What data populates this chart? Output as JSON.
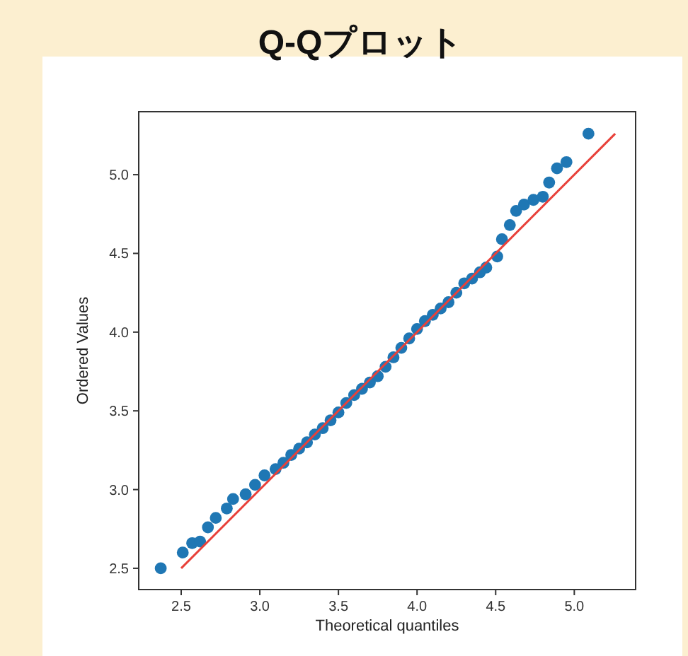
{
  "chart_data": {
    "type": "scatter",
    "title": "Q-Qプロット",
    "xlabel": "Theoretical quantiles",
    "ylabel": "Ordered Values",
    "xlim": [
      2.23,
      5.39
    ],
    "ylim": [
      2.365,
      5.4
    ],
    "xticks": [
      {
        "value": 2.5,
        "label": "2.5"
      },
      {
        "value": 3,
        "label": "3.0"
      },
      {
        "value": 3.5,
        "label": "3.5"
      },
      {
        "value": 4,
        "label": "4.0"
      },
      {
        "value": 4.5,
        "label": "4.5"
      },
      {
        "value": 5,
        "label": "5.0"
      }
    ],
    "yticks": [
      {
        "value": 2.5,
        "label": "2.5"
      },
      {
        "value": 3,
        "label": "3.0"
      },
      {
        "value": 3.5,
        "label": "3.5"
      },
      {
        "value": 4,
        "label": "4.0"
      },
      {
        "value": 4.5,
        "label": "4.5"
      },
      {
        "value": 5,
        "label": "5.0"
      }
    ],
    "grid": false,
    "series": [
      {
        "marker": "circle",
        "color": "#1f77b4",
        "x": [
          2.37,
          2.51,
          2.57,
          2.62,
          2.67,
          2.72,
          2.79,
          2.83,
          2.91,
          2.97,
          3.03,
          3.1,
          3.15,
          3.2,
          3.25,
          3.3,
          3.35,
          3.4,
          3.45,
          3.5,
          3.55,
          3.6,
          3.65,
          3.7,
          3.75,
          3.8,
          3.85,
          3.9,
          3.95,
          4.0,
          4.05,
          4.1,
          4.15,
          4.2,
          4.25,
          4.3,
          4.35,
          4.4,
          4.44,
          4.51,
          4.54,
          4.59,
          4.63,
          4.68,
          4.74,
          4.8,
          4.84,
          4.89,
          4.95,
          5.09
        ],
        "values": [
          2.5,
          2.6,
          2.66,
          2.67,
          2.76,
          2.82,
          2.88,
          2.94,
          2.97,
          3.03,
          3.09,
          3.13,
          3.17,
          3.22,
          3.26,
          3.3,
          3.35,
          3.39,
          3.44,
          3.49,
          3.55,
          3.6,
          3.64,
          3.68,
          3.72,
          3.78,
          3.84,
          3.9,
          3.96,
          4.02,
          4.07,
          4.11,
          4.15,
          4.19,
          4.25,
          4.31,
          4.34,
          4.38,
          4.41,
          4.48,
          4.59,
          4.68,
          4.77,
          4.81,
          4.84,
          4.86,
          4.95,
          5.04,
          5.08,
          5.26
        ]
      },
      {
        "type": "line",
        "marker": "none",
        "color": "#e8413a",
        "x": [
          2.5,
          5.26
        ],
        "values": [
          2.5,
          5.26
        ]
      }
    ]
  }
}
